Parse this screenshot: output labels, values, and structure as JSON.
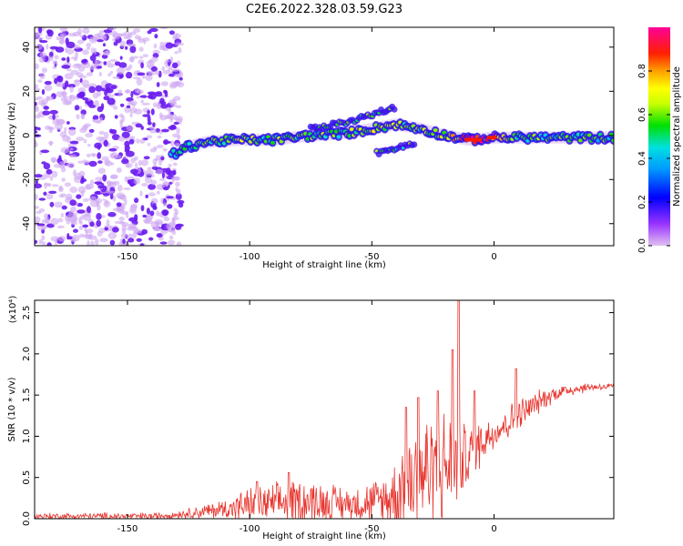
{
  "chart_data": [
    {
      "type": "heatmap",
      "title": "C2E6.2022.328.03.59.G23",
      "xlabel": "Height of straight line (km)",
      "ylabel": "Frequency (Hz)",
      "xlim": [
        -188,
        49
      ],
      "ylim": [
        -50,
        49
      ],
      "x_ticks": [
        -150,
        -100,
        -50,
        0
      ],
      "y_ticks": [
        -40,
        -20,
        0,
        20,
        40
      ],
      "grid": false,
      "colorbar": {
        "label": "Normalized spectral amplitude",
        "range": [
          0.0,
          1.0
        ],
        "ticks": [
          "0.0",
          "0.2",
          "0.4",
          "0.6",
          "0.8"
        ],
        "colors": [
          "#e0c0f0",
          "#9933ff",
          "#5500ff",
          "#0000ff",
          "#0099ff",
          "#00e0e0",
          "#00e000",
          "#c8ff00",
          "#ffff00",
          "#ffc000",
          "#ff6600",
          "#ff0000",
          "#ff0099"
        ]
      },
      "features": {
        "noise_region_x": [
          -188,
          -128
        ],
        "main_track": [
          {
            "x": -132,
            "y": -9,
            "v": 0.45
          },
          {
            "x": -125,
            "y": -5,
            "v": 0.5
          },
          {
            "x": -118,
            "y": -3,
            "v": 0.55
          },
          {
            "x": -105,
            "y": -2,
            "v": 0.6
          },
          {
            "x": -90,
            "y": -2,
            "v": 0.55
          },
          {
            "x": -75,
            "y": 0,
            "v": 0.6
          },
          {
            "x": -60,
            "y": 1,
            "v": 0.55
          },
          {
            "x": -50,
            "y": 3,
            "v": 0.65
          },
          {
            "x": -40,
            "y": 5,
            "v": 0.6
          },
          {
            "x": -30,
            "y": 3,
            "v": 0.55
          },
          {
            "x": -20,
            "y": 0,
            "v": 0.6
          },
          {
            "x": -10,
            "y": -2,
            "v": 0.95
          },
          {
            "x": 0,
            "y": -1,
            "v": 0.9
          },
          {
            "x": 10,
            "y": -1,
            "v": 0.55
          },
          {
            "x": 25,
            "y": -1,
            "v": 0.5
          },
          {
            "x": 45,
            "y": -1,
            "v": 0.5
          }
        ],
        "upper_branch": [
          {
            "x": -75,
            "y": 3
          },
          {
            "x": -60,
            "y": 6
          },
          {
            "x": -48,
            "y": 10
          },
          {
            "x": -40,
            "y": 13
          }
        ],
        "lower_branch": [
          {
            "x": -48,
            "y": -8
          },
          {
            "x": -40,
            "y": -6
          },
          {
            "x": -32,
            "y": -3
          }
        ]
      }
    },
    {
      "type": "line",
      "xlabel": "Height of straight line (km)",
      "ylabel": "SNR (10 * v/v)",
      "y_multiplier": "(x10⁴)",
      "xlim": [
        -188,
        49
      ],
      "ylim": [
        0.0,
        2.65
      ],
      "x_ticks": [
        -150,
        -100,
        -50,
        0
      ],
      "y_ticks": [
        "0.0",
        "0.5",
        "1.0",
        "1.5",
        "2.0",
        "2.5"
      ],
      "grid": false,
      "series_color": "#e8352e",
      "envelope": {
        "x": [
          -188,
          -160,
          -140,
          -130,
          -120,
          -110,
          -100,
          -90,
          -80,
          -70,
          -60,
          -50,
          -45,
          -40,
          -35,
          -30,
          -25,
          -20,
          -15,
          -10,
          -5,
          0,
          5,
          10,
          15,
          20,
          25,
          30,
          35,
          40,
          49
        ],
        "level": [
          0.03,
          0.03,
          0.03,
          0.05,
          0.08,
          0.12,
          0.16,
          0.18,
          0.22,
          0.2,
          0.18,
          0.2,
          0.22,
          0.3,
          0.45,
          0.55,
          0.6,
          0.62,
          0.68,
          0.78,
          0.95,
          1.05,
          1.15,
          1.25,
          1.35,
          1.45,
          1.52,
          1.56,
          1.58,
          1.6,
          1.6
        ],
        "spread": [
          0.05,
          0.05,
          0.05,
          0.06,
          0.1,
          0.15,
          0.25,
          0.28,
          0.35,
          0.3,
          0.25,
          0.3,
          0.4,
          0.6,
          0.9,
          0.9,
          0.85,
          0.8,
          0.6,
          0.45,
          0.35,
          0.25,
          0.25,
          0.25,
          0.2,
          0.15,
          0.12,
          0.1,
          0.08,
          0.06,
          0.05
        ]
      },
      "peaks": [
        {
          "x": -97,
          "y": 0.45
        },
        {
          "x": -84,
          "y": 0.56
        },
        {
          "x": -36,
          "y": 1.35
        },
        {
          "x": -31,
          "y": 1.47
        },
        {
          "x": -23,
          "y": 1.55
        },
        {
          "x": -17,
          "y": 2.05
        },
        {
          "x": -14.5,
          "y": 2.65
        },
        {
          "x": -8,
          "y": 1.55
        },
        {
          "x": 9,
          "y": 1.82
        }
      ]
    }
  ]
}
